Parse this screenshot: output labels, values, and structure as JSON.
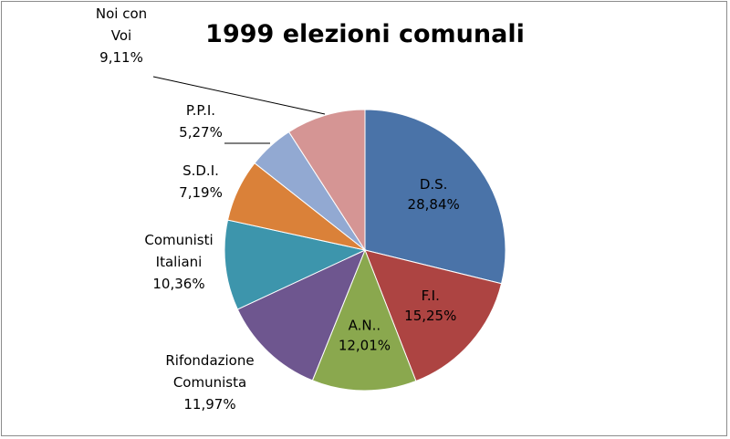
{
  "chart_data": {
    "type": "pie",
    "title": "1999 elezioni comunali",
    "start_angle_deg": 0,
    "direction": "clockwise",
    "slices": [
      {
        "label": "D.S.",
        "value": 28.84,
        "display": "28,84%",
        "color": "#4a73a8",
        "label_inside": true
      },
      {
        "label": "F.I.",
        "value": 15.25,
        "display": "15,25%",
        "color": "#ad4442",
        "label_inside": true
      },
      {
        "label": "A.N..",
        "value": 12.01,
        "display": "12,01%",
        "color": "#8aa84e",
        "label_inside": true
      },
      {
        "label": "Rifondazione Comunista",
        "value": 11.97,
        "display": "11,97%",
        "color": "#6e568f",
        "label_inside": false
      },
      {
        "label": "Comunisti Italiani",
        "value": 10.36,
        "display": "10,36%",
        "color": "#3d95ac",
        "label_inside": false
      },
      {
        "label": "S.D.I.",
        "value": 7.19,
        "display": "7,19%",
        "color": "#da8139",
        "label_inside": false
      },
      {
        "label": "P.P.I.",
        "value": 5.27,
        "display": "5,27%",
        "color": "#92a9d2",
        "label_inside": false
      },
      {
        "label": "Noi con Voi",
        "value": 9.11,
        "display": "9,11%",
        "color": "#d59594",
        "label_inside": false
      }
    ]
  }
}
